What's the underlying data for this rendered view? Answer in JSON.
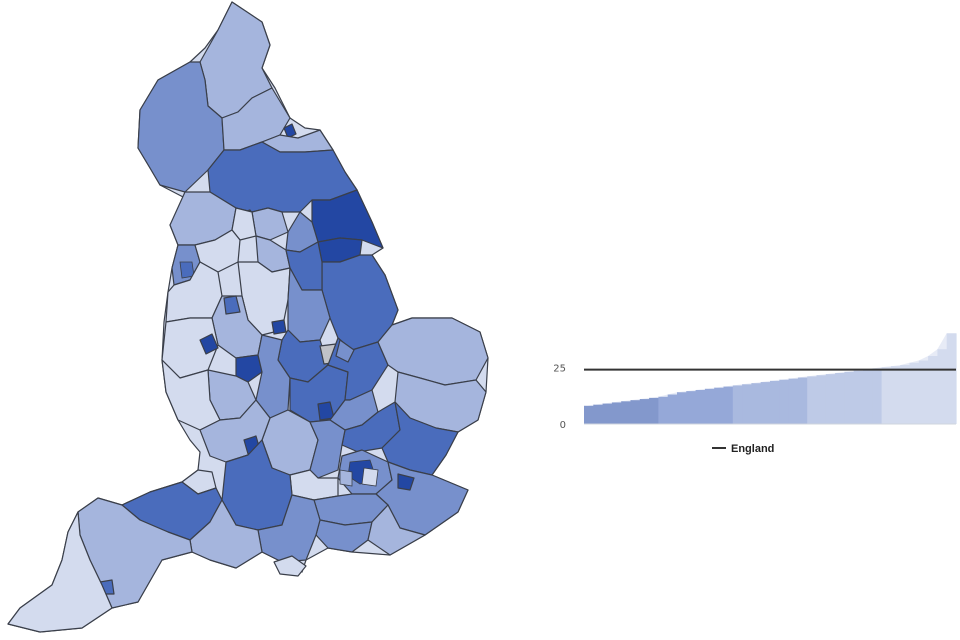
{
  "map": {
    "quintile_colors": [
      "#2347a3",
      "#4a6cbc",
      "#7790cc",
      "#a5b5dd",
      "#d3dbee"
    ],
    "no_data_color": "#c0c2c8"
  },
  "chart_data": {
    "type": "area",
    "y_ticks": [
      "25",
      "0"
    ],
    "ylim": [
      0,
      45
    ],
    "reference": {
      "name": "England",
      "value": 24
    },
    "legend": {
      "label": "England",
      "placement": "bottom-center"
    },
    "series": [
      {
        "values": [
          8,
          8.5,
          9,
          9.5,
          10,
          10.5,
          11,
          11.5,
          12,
          13,
          14,
          14.5,
          15,
          15.5,
          16,
          16.5,
          17,
          17.5,
          18,
          18.5,
          19,
          19.5,
          20,
          20.5,
          21,
          21.5,
          22,
          22.5,
          23,
          23.5,
          24,
          24.5,
          25,
          25.5,
          26,
          27,
          28,
          30,
          33,
          40
        ]
      }
    ],
    "quintiles": 5,
    "grid": false
  }
}
